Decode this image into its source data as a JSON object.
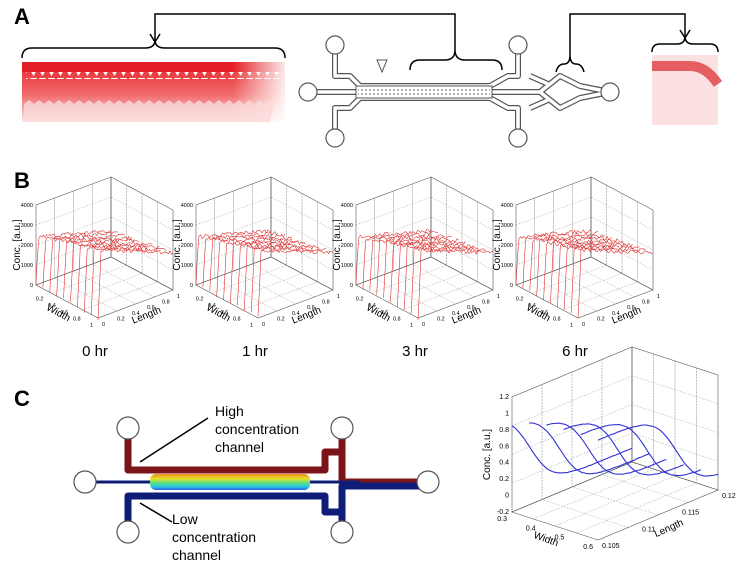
{
  "panel_a": {
    "label": "A"
  },
  "panel_b": {
    "label": "B",
    "plots": [
      {
        "time": "0 hr"
      },
      {
        "time": "1 hr"
      },
      {
        "time": "3 hr"
      },
      {
        "time": "6 hr"
      }
    ],
    "z_axis_label": "Conc. [a.u.]",
    "width_axis_label": "Width",
    "length_axis_label": "Length",
    "z_ticks": [
      "0",
      "1000",
      "2000",
      "3000",
      "4000"
    ],
    "width_ticks": [
      "0.2",
      "0.4",
      "0.6",
      "0.8",
      "1"
    ],
    "length_ticks": [
      "0",
      "0.2",
      "0.4",
      "0.6",
      "0.8",
      "1"
    ]
  },
  "panel_c": {
    "label": "C",
    "high_label": [
      "High",
      "concentration",
      "channel"
    ],
    "low_label": [
      "Low",
      "concentration",
      "channel"
    ],
    "plot": {
      "z_axis_label": "Conc. [a.u.]",
      "width_axis_label": "Width",
      "length_axis_label": "Length",
      "z_ticks": [
        "-0.2",
        "0",
        "0.2",
        "0.4",
        "0.6",
        "0.8",
        "1",
        "1.2"
      ],
      "width_ticks": [
        "0.3",
        "0.4",
        "0.5",
        "0.6"
      ],
      "length_ticks": [
        "0.105",
        "0.11",
        "0.115",
        "0.12"
      ]
    }
  }
}
